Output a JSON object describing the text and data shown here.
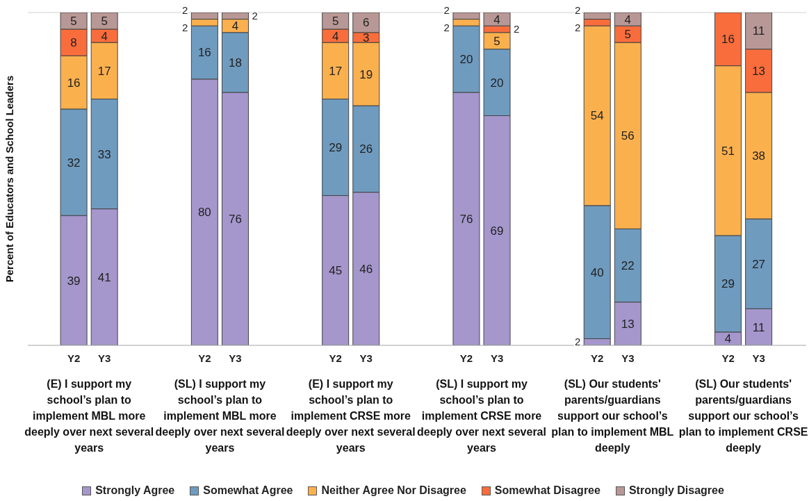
{
  "chart_data": {
    "type": "bar",
    "stacked": true,
    "ylabel": "Percent of Educators and School Leaders",
    "categories": [
      "Y2",
      "Y3",
      "Y2",
      "Y3",
      "Y2",
      "Y3",
      "Y2",
      "Y3",
      "Y2",
      "Y3",
      "Y2",
      "Y3"
    ],
    "annotations": [
      "(E) I support my school’s plan to implement MBL more deeply over next several years",
      "(SL) I support my school’s plan to implement MBL more deeply over next several years",
      "(E) I support my school’s plan to implement CRSE more deeply over next several years",
      "(SL) I support my school’s plan to implement CRSE more deeply over next several years",
      "(SL) Our students' parents/guardians support our school’s plan to implement MBL deeply",
      "(SL) Our students' parents/guardians support our school’s plan to implement CRSE deeply"
    ],
    "series": [
      {
        "name": "Strongly Agree",
        "color": "#a597cc",
        "values": [
          39,
          41,
          80,
          76,
          45,
          46,
          76,
          69,
          2,
          13,
          4,
          11
        ]
      },
      {
        "name": "Somewhat Agree",
        "color": "#6f9bbf",
        "values": [
          32,
          33,
          16,
          18,
          29,
          26,
          20,
          20,
          40,
          22,
          29,
          27
        ]
      },
      {
        "name": "Neither Agree Nor Disagree",
        "color": "#fbb04e",
        "values": [
          16,
          17,
          2,
          4,
          17,
          19,
          2,
          5,
          54,
          56,
          51,
          38
        ]
      },
      {
        "name": "Somewhat Disagree",
        "color": "#f96d3c",
        "values": [
          8,
          4,
          null,
          null,
          4,
          3,
          null,
          2,
          2,
          5,
          16,
          13
        ]
      },
      {
        "name": "Strongly Disagree",
        "color": "#b89896",
        "values": [
          5,
          5,
          2,
          2,
          5,
          6,
          2,
          4,
          2,
          4,
          null,
          11
        ]
      }
    ],
    "ylim": [
      0,
      100
    ],
    "tick_labels": "x",
    "grid": "y",
    "data_labels": true,
    "legend": "bottom"
  }
}
